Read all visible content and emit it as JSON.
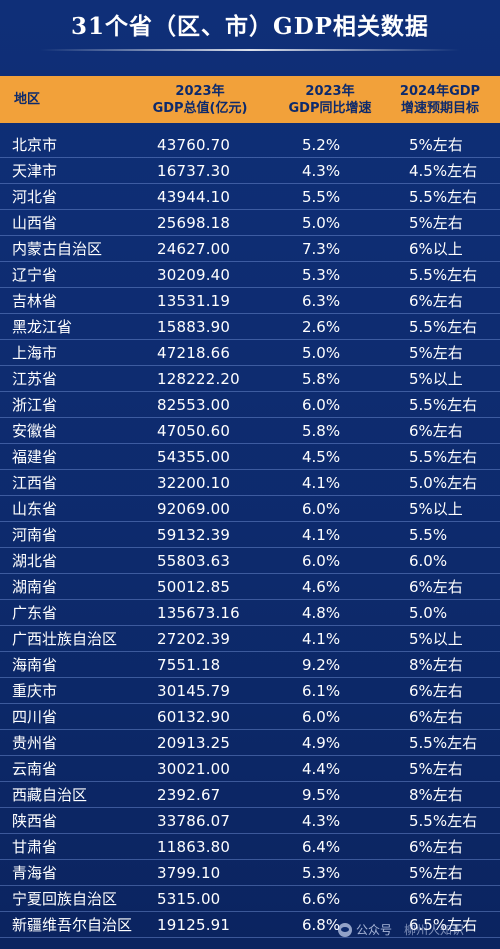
{
  "title": "31个省（区、市）GDP相关数据",
  "header": {
    "region": "地区",
    "gdp_line1": "2023年",
    "gdp_line2": "GDP总值(亿元)",
    "growth_line1": "2023年",
    "growth_line2": "GDP同比增速",
    "target_line1": "2024年GDP",
    "target_line2": "增速预期目标"
  },
  "rows": [
    {
      "region": "北京市",
      "gdp": "43760.70",
      "growth": "5.2%",
      "target": "5%左右"
    },
    {
      "region": "天津市",
      "gdp": "16737.30",
      "growth": "4.3%",
      "target": "4.5%左右"
    },
    {
      "region": "河北省",
      "gdp": "43944.10",
      "growth": "5.5%",
      "target": "5.5%左右"
    },
    {
      "region": "山西省",
      "gdp": "25698.18",
      "growth": "5.0%",
      "target": "5%左右"
    },
    {
      "region": "内蒙古自治区",
      "gdp": "24627.00",
      "growth": "7.3%",
      "target": "6%以上"
    },
    {
      "region": "辽宁省",
      "gdp": "30209.40",
      "growth": "5.3%",
      "target": "5.5%左右"
    },
    {
      "region": "吉林省",
      "gdp": "13531.19",
      "growth": "6.3%",
      "target": "6%左右"
    },
    {
      "region": "黑龙江省",
      "gdp": "15883.90",
      "growth": "2.6%",
      "target": "5.5%左右"
    },
    {
      "region": "上海市",
      "gdp": "47218.66",
      "growth": "5.0%",
      "target": "5%左右"
    },
    {
      "region": "江苏省",
      "gdp": "128222.20",
      "growth": "5.8%",
      "target": "5%以上"
    },
    {
      "region": "浙江省",
      "gdp": "82553.00",
      "growth": "6.0%",
      "target": "5.5%左右"
    },
    {
      "region": "安徽省",
      "gdp": "47050.60",
      "growth": "5.8%",
      "target": "6%左右"
    },
    {
      "region": "福建省",
      "gdp": "54355.00",
      "growth": "4.5%",
      "target": "5.5%左右"
    },
    {
      "region": "江西省",
      "gdp": "32200.10",
      "growth": "4.1%",
      "target": "5.0%左右"
    },
    {
      "region": "山东省",
      "gdp": "92069.00",
      "growth": "6.0%",
      "target": "5%以上"
    },
    {
      "region": "河南省",
      "gdp": "59132.39",
      "growth": "4.1%",
      "target": "5.5%"
    },
    {
      "region": "湖北省",
      "gdp": "55803.63",
      "growth": "6.0%",
      "target": "6.0%"
    },
    {
      "region": "湖南省",
      "gdp": "50012.85",
      "growth": "4.6%",
      "target": "6%左右"
    },
    {
      "region": "广东省",
      "gdp": "135673.16",
      "growth": "4.8%",
      "target": "5.0%"
    },
    {
      "region": "广西壮族自治区",
      "gdp": "27202.39",
      "growth": "4.1%",
      "target": "5%以上"
    },
    {
      "region": "海南省",
      "gdp": "7551.18",
      "growth": "9.2%",
      "target": "8%左右"
    },
    {
      "region": "重庆市",
      "gdp": "30145.79",
      "growth": "6.1%",
      "target": "6%左右"
    },
    {
      "region": "四川省",
      "gdp": "60132.90",
      "growth": "6.0%",
      "target": "6%左右"
    },
    {
      "region": "贵州省",
      "gdp": "20913.25",
      "growth": "4.9%",
      "target": "5.5%左右"
    },
    {
      "region": "云南省",
      "gdp": "30021.00",
      "growth": "4.4%",
      "target": "5%左右"
    },
    {
      "region": "西藏自治区",
      "gdp": "2392.67",
      "growth": "9.5%",
      "target": "8%左右"
    },
    {
      "region": "陕西省",
      "gdp": "33786.07",
      "growth": "4.3%",
      "target": "5.5%左右"
    },
    {
      "region": "甘肃省",
      "gdp": "11863.80",
      "growth": "6.4%",
      "target": "6%左右"
    },
    {
      "region": "青海省",
      "gdp": "3799.10",
      "growth": "5.3%",
      "target": "5%左右"
    },
    {
      "region": "宁夏回族自治区",
      "gdp": "5315.00",
      "growth": "6.6%",
      "target": "6%左右"
    },
    {
      "region": "新疆维吾尔自治区",
      "gdp": "19125.91",
      "growth": "6.8%",
      "target": "6.5%左右"
    }
  ],
  "watermark": {
    "label": "公众号",
    "name": "柳州人知识"
  },
  "colors": {
    "background": "#0d2a6c",
    "header_bg": "#f2a13a",
    "header_text": "#0d2a6c",
    "text": "#ffffff"
  }
}
